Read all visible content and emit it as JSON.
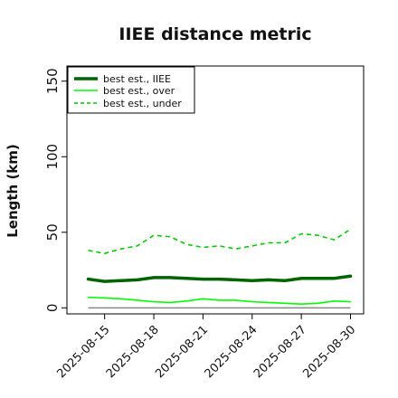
{
  "chart_data": {
    "type": "line",
    "title": "IIEE distance metric",
    "ylabel": "Length (km)",
    "xlabel": "",
    "ylim": [
      -4,
      160
    ],
    "xlim": [
      -1.3,
      16.8
    ],
    "grid": false,
    "legend_position": "top-left",
    "x_tick_positions": [
      1,
      4,
      7,
      10,
      13,
      16
    ],
    "x_tick_labels": [
      "2025-08-15",
      "2025-08-18",
      "2025-08-21",
      "2025-08-24",
      "2025-08-27",
      "2025-08-30"
    ],
    "y_ticks": [
      0,
      50,
      100,
      150
    ],
    "x": [
      "2025-08-14",
      "2025-08-15",
      "2025-08-16",
      "2025-08-17",
      "2025-08-18",
      "2025-08-19",
      "2025-08-20",
      "2025-08-21",
      "2025-08-22",
      "2025-08-23",
      "2025-08-24",
      "2025-08-25",
      "2025-08-26",
      "2025-08-27",
      "2025-08-28",
      "2025-08-29",
      "2025-08-30"
    ],
    "series": [
      {
        "name": "best est., IIEE",
        "color": "#006400",
        "style": "solid-thick",
        "values": [
          19,
          17.5,
          18,
          18.5,
          20,
          20,
          19.5,
          19,
          19,
          18.5,
          18,
          18.5,
          18,
          19.5,
          19.5,
          19.5,
          21
        ]
      },
      {
        "name": "best est., over",
        "color": "#00ff00",
        "style": "solid",
        "values": [
          7,
          6.5,
          6,
          5,
          4,
          3.5,
          4.5,
          6,
          5,
          5,
          4,
          3.5,
          3,
          2.5,
          3,
          4.5,
          4
        ]
      },
      {
        "name": "best est., under",
        "color": "#00cc00",
        "style": "dashed",
        "values": [
          38,
          36,
          39,
          41,
          48,
          47,
          42,
          40,
          41,
          39,
          41,
          43,
          43,
          49,
          48,
          45,
          52
        ]
      }
    ],
    "baseline": {
      "color": "#888888",
      "value": 0
    }
  }
}
